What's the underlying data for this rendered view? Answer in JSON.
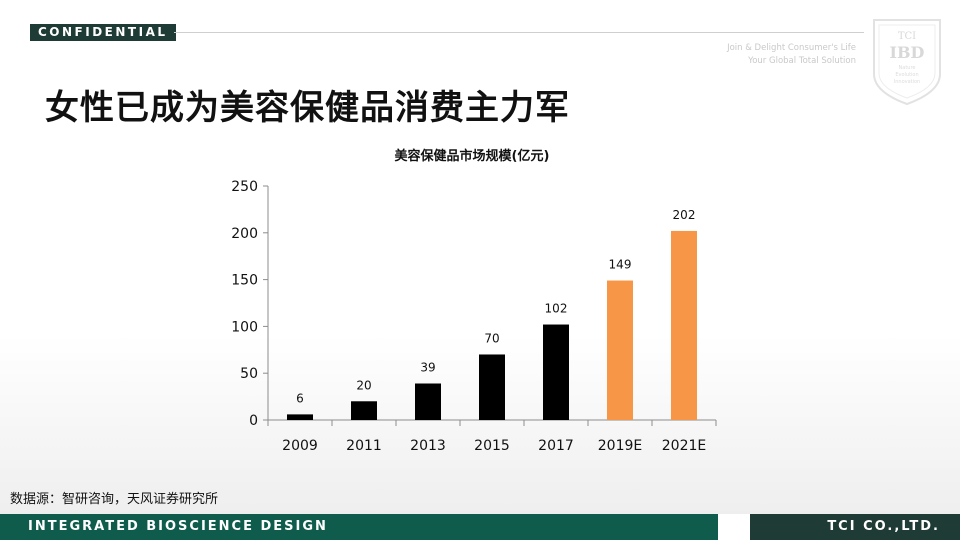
{
  "header": {
    "badge": "CONFIDENTIAL",
    "tagline_line1": "Join & Delight Consumer's Life",
    "tagline_line2": "Your Global Total Solution",
    "logo_top": "TCI",
    "logo_main": "IBD",
    "logo_sub1": "Nature",
    "logo_sub2": "Evolution",
    "logo_sub3": "Innovation"
  },
  "slide": {
    "title": "女性已成为美容保健品消费主力军",
    "source": "数据源：智研咨询，天风证券研究所"
  },
  "footer": {
    "left": "INTEGRATED BIOSCIENCE DESIGN",
    "right": "TCI CO.,LTD."
  },
  "colors": {
    "actual": "#000000",
    "estimate": "#f79646",
    "brand_dark": "#1f3b35",
    "brand_green": "#0f5c4c"
  },
  "chart_data": {
    "type": "bar",
    "title": "美容保健品市场规模(亿元)",
    "categories": [
      "2009",
      "2011",
      "2013",
      "2015",
      "2017",
      "2019E",
      "2021E"
    ],
    "values": [
      6,
      20,
      39,
      70,
      102,
      149,
      202
    ],
    "estimate_flags": [
      false,
      false,
      false,
      false,
      false,
      true,
      true
    ],
    "ylim": [
      0,
      250
    ],
    "yticks": [
      0,
      50,
      100,
      150,
      200,
      250
    ],
    "xlabel": "",
    "ylabel": "",
    "grid": false,
    "legend": "none"
  }
}
